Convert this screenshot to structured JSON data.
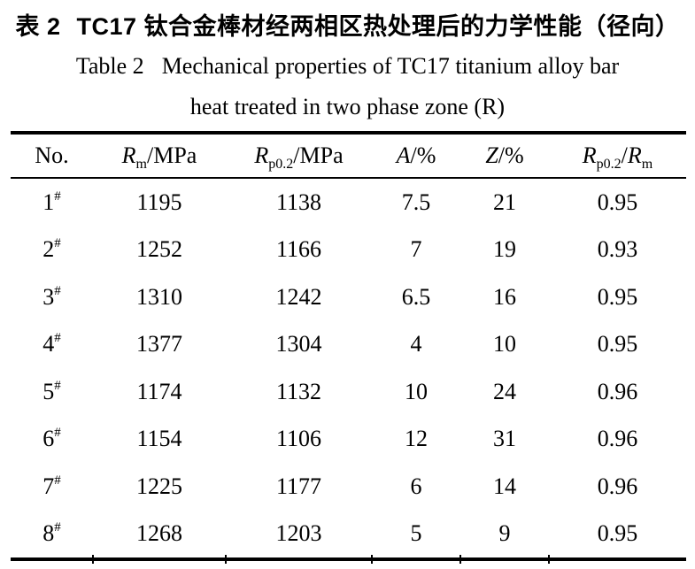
{
  "caption": {
    "chinese_label": "表 2",
    "chinese_text": "TC17 钛合金棒材经两相区热处理后的力学性能（径向）",
    "english_label": "Table 2",
    "english_text": "Mechanical properties of TC17 titanium alloy bar",
    "english_line2": "heat treated in two phase zone (R)"
  },
  "table": {
    "header": {
      "no": "No.",
      "rm": {
        "sym": "R",
        "sub": "m",
        "suffix": "/MPa"
      },
      "rp02": {
        "sym": "R",
        "sub": "p0.2",
        "suffix": "/MPa"
      },
      "a": {
        "sym": "A",
        "suffix": "/%"
      },
      "z": {
        "sym": "Z",
        "suffix": "/%"
      },
      "ratio": {
        "sym1": "R",
        "sub1": "p0.2",
        "slash": "/",
        "sym2": "R",
        "sub2": "m"
      }
    },
    "rows": [
      {
        "no": "1",
        "mark": "#",
        "rm": "1195",
        "rp02": "1138",
        "a": "7.5",
        "z": "21",
        "ratio": "0.95"
      },
      {
        "no": "2",
        "mark": "#",
        "rm": "1252",
        "rp02": "1166",
        "a": "7",
        "z": "19",
        "ratio": "0.93"
      },
      {
        "no": "3",
        "mark": "#",
        "rm": "1310",
        "rp02": "1242",
        "a": "6.5",
        "z": "16",
        "ratio": "0.95"
      },
      {
        "no": "4",
        "mark": "#",
        "rm": "1377",
        "rp02": "1304",
        "a": "4",
        "z": "10",
        "ratio": "0.95"
      },
      {
        "no": "5",
        "mark": "#",
        "rm": "1174",
        "rp02": "1132",
        "a": "10",
        "z": "24",
        "ratio": "0.96"
      },
      {
        "no": "6",
        "mark": "#",
        "rm": "1154",
        "rp02": "1106",
        "a": "12",
        "z": "31",
        "ratio": "0.96"
      },
      {
        "no": "7",
        "mark": "#",
        "rm": "1225",
        "rp02": "1177",
        "a": "6",
        "z": "14",
        "ratio": "0.96"
      },
      {
        "no": "8",
        "mark": "#",
        "rm": "1268",
        "rp02": "1203",
        "a": "5",
        "z": "9",
        "ratio": "0.95"
      }
    ]
  },
  "colors": {
    "text": "#000000",
    "rule": "#000000",
    "background": "#ffffff"
  }
}
